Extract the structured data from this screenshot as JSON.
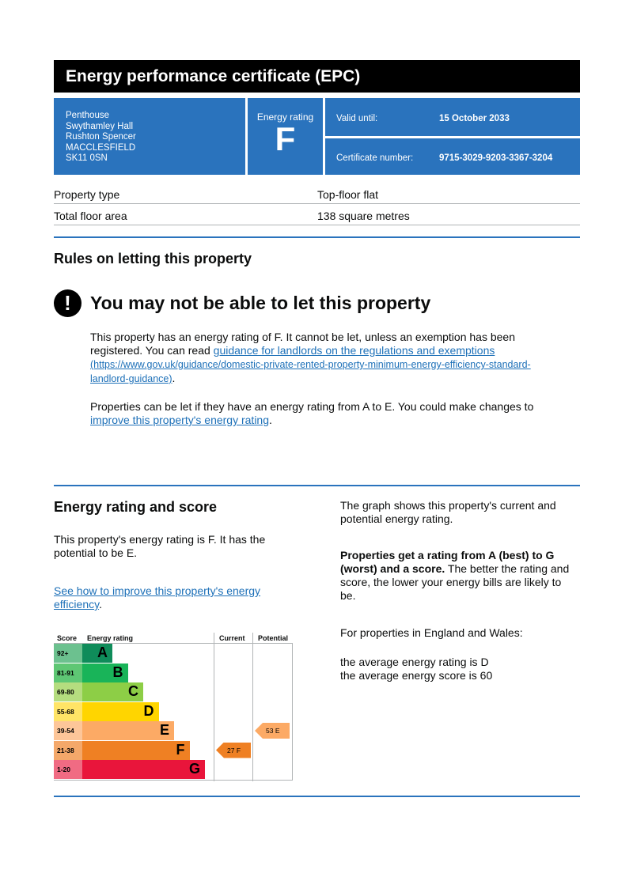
{
  "title": "Energy performance certificate (EPC)",
  "address": [
    "Penthouse",
    "Swythamley Hall",
    "Rushton Spencer",
    "MACCLESFIELD",
    "SK11 0SN"
  ],
  "rating_box": {
    "label": "Energy rating",
    "value": "F"
  },
  "valid": {
    "label": "Valid until:",
    "value": "15 October 2033"
  },
  "certificate": {
    "label": "Certificate number:",
    "value": "9715-3029-9203-3367-3204"
  },
  "property": {
    "type_label": "Property type",
    "type_value": "Top-floor flat",
    "area_label": "Total floor area",
    "area_value": "138 square metres"
  },
  "letting": {
    "heading": "Rules on letting this property",
    "warn_icon": "!",
    "warning": "You may not be able to let this property",
    "p1_text": "This property has an energy rating of F. It cannot be let, unless an exemption has been registered. You can read",
    "p1_link": "guidance for landlords on the regulations and exemptions",
    "p1_url": "(https://www.gov.uk/guidance/domestic-private-rented-property-minimum-energy-efficiency-standard-landlord-guidance)",
    "p1_end": ".",
    "p2_text": "Properties can be let if they have an energy rating from A to E. You could make changes to",
    "p2_link": "improve this property's energy rating",
    "p2_end": "."
  },
  "score_section": {
    "heading": "Energy rating and score",
    "p1": "This property's energy rating is F. It has the potential to be E.",
    "link": "See how to improve this property's energy efficiency",
    "link_end": ".",
    "right_p1": "The graph shows this property's current and potential energy rating.",
    "right_bold": "Properties get a rating from A (best) to G (worst) and a score.",
    "right_rest": " The better the rating and score, the lower your energy bills are likely to be.",
    "right_p3": "For properties in England and Wales:",
    "avg_rating": "the average energy rating is D",
    "avg_score": "the average energy score is 60"
  },
  "chart_data": {
    "type": "bar",
    "headers": {
      "score": "Score",
      "rating": "Energy rating",
      "current": "Current",
      "potential": "Potential"
    },
    "bands": [
      {
        "range": "92+",
        "letter": "A",
        "color": "#0f8c5a",
        "score_bg": "#6cc18f"
      },
      {
        "range": "81-91",
        "letter": "B",
        "color": "#19b459",
        "score_bg": "#5ec774"
      },
      {
        "range": "69-80",
        "letter": "C",
        "color": "#8dce46",
        "score_bg": "#b5dd7f"
      },
      {
        "range": "55-68",
        "letter": "D",
        "color": "#ffd500",
        "score_bg": "#ffe466"
      },
      {
        "range": "39-54",
        "letter": "E",
        "color": "#fcaa65",
        "score_bg": "#fdc699"
      },
      {
        "range": "21-38",
        "letter": "F",
        "color": "#ef8023",
        "score_bg": "#f4a86a"
      },
      {
        "range": "1-20",
        "letter": "G",
        "color": "#e9153b",
        "score_bg": "#f06b83"
      }
    ],
    "current": {
      "score": 27,
      "letter": "F",
      "label": "27  F",
      "color": "#ef8023"
    },
    "potential": {
      "score": 53,
      "letter": "E",
      "label": "53  E",
      "color": "#fcaa65"
    }
  }
}
